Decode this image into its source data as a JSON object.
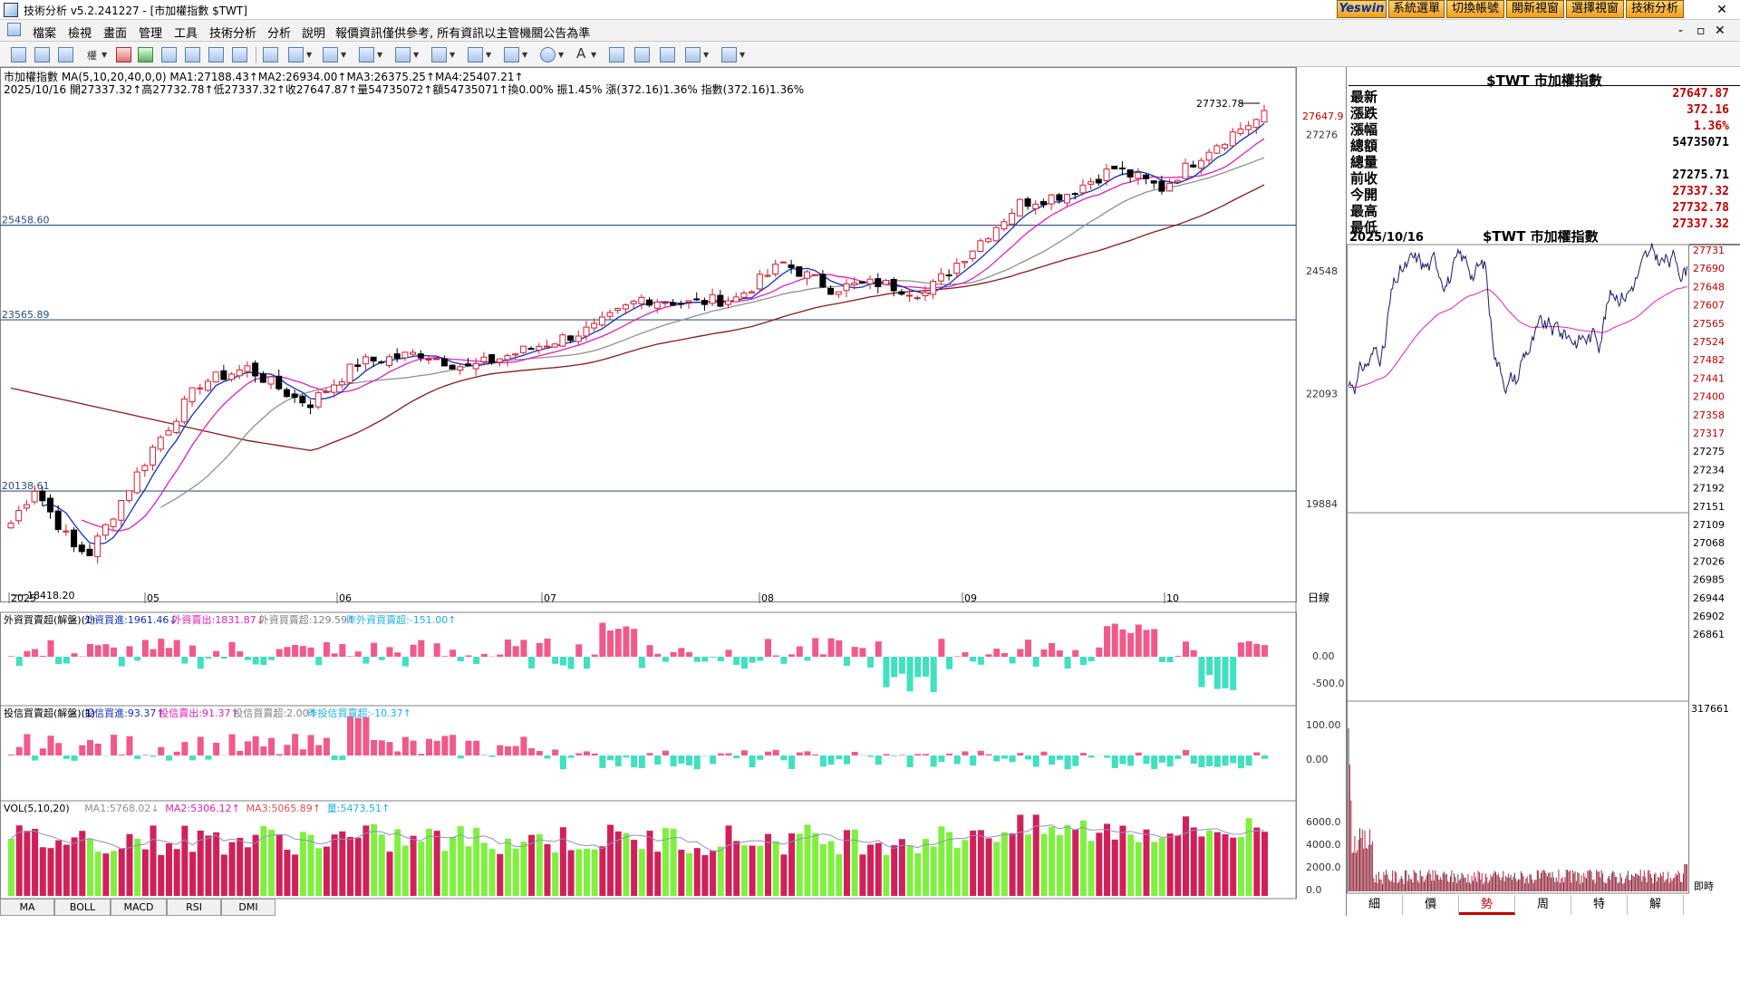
{
  "window": {
    "title": "技術分析 v5.2.241227 - [市加權指數 $TWT]",
    "top_buttons": [
      "Yeswin",
      "系統選單",
      "切換帳號",
      "開新視窗",
      "選擇視窗",
      "技術分析"
    ],
    "close_glyph": "✕",
    "ctrl_glyphs": [
      "-",
      "▫",
      "✕"
    ]
  },
  "menu": {
    "items": [
      "檔案",
      "檢視",
      "畫面",
      "管理",
      "工具",
      "技術分析",
      "分析",
      "說明"
    ],
    "notice": "報價資訊僅供參考, 所有資訊以主管機關公告為準"
  },
  "toolbar": {
    "font_label": "A"
  },
  "main_chart": {
    "header_line1": "市加權指數 MA(5,10,20,40,0,0) MA1:27188.43↑MA2:26934.00↑MA3:26375.25↑MA4:25407.21↑",
    "header_line2": "2025/10/16 開27337.32↑高27732.78↑低27337.32↑收27647.87↑量54735072↑額54735071↑換0.00% 振1.45% 漲(372.16)1.36% 指數(372.16)1.36%",
    "hlines": [
      "25458.60",
      "23565.89",
      "20138.61"
    ],
    "high_label": "27732.78",
    "low_label": "18418.20",
    "last_price": "27647.9",
    "price_ticks": [
      "27276",
      "24548",
      "22093",
      "19884"
    ],
    "months": [
      "2025",
      "05",
      "06",
      "07",
      "08",
      "09",
      "10"
    ],
    "axis_unit": "日線"
  },
  "foreign_panel": {
    "header_parts": [
      "外資買賣超(解盤)(1)",
      "外資買進:1961.46↓",
      "外資賣出:1831.87↓",
      "外資買賣超:129.59↑",
      "昨外資買賣超:-151.00↑"
    ],
    "ticks": [
      "0.00",
      "-500.0"
    ]
  },
  "trust_panel": {
    "header_parts": [
      "投信買賣超(解盤)(1)",
      "投信買進:93.37↑",
      "投信賣出:91.37↑",
      "投信買賣超:2.00↑",
      "昨投信買賣超:-10.37↑"
    ],
    "ticks": [
      "100.00",
      "0.00"
    ]
  },
  "volume_panel": {
    "header_parts": [
      "VOL(5,10,20)",
      "MA1:5768.02↓",
      "MA2:5306.12↑",
      "MA3:5065.89↑",
      "量:5473.51↑"
    ],
    "ticks": [
      "6000.0",
      "4000.0",
      "2000.0",
      "0.0"
    ]
  },
  "bottom_tabs": [
    "MA",
    "BOLL",
    "MACD",
    "RSI",
    "DMI"
  ],
  "quote": {
    "title": "$TWT 市加權指數",
    "rows": [
      {
        "label": "最新",
        "value": "27647.87",
        "color": "#c00000"
      },
      {
        "label": "漲跌",
        "value": "372.16",
        "color": "#c00000"
      },
      {
        "label": "漲幅",
        "value": "1.36%",
        "color": "#c00000"
      },
      {
        "label": "總額",
        "value": "54735071",
        "color": "#000000"
      },
      {
        "label": "總量",
        "value": "",
        "color": "#000000"
      },
      {
        "label": "前收",
        "value": "27275.71",
        "color": "#000000"
      },
      {
        "label": "今開",
        "value": "27337.32",
        "color": "#c00000"
      },
      {
        "label": "最高",
        "value": "27732.78",
        "color": "#c00000"
      },
      {
        "label": "最低",
        "value": "27337.32",
        "color": "#c00000"
      }
    ]
  },
  "intraday": {
    "date": "2025/10/16",
    "title": "$TWT 市加權指數",
    "price_ticks": [
      "27731",
      "27690",
      "27648",
      "27607",
      "27565",
      "27524",
      "27482",
      "27441",
      "27400",
      "27358",
      "27317",
      "27275",
      "27234",
      "27192",
      "27151",
      "27109",
      "27068",
      "27026",
      "26985",
      "26944",
      "26902",
      "26861"
    ],
    "vol_max": "317661",
    "time_label": "即時"
  },
  "right_tabs": [
    "細",
    "價",
    "勢",
    "周",
    "特",
    "解"
  ],
  "colors": {
    "up": "#d02030",
    "down": "#000000",
    "ma1": "#1030c0",
    "ma2": "#e020c0",
    "ma3": "#909090",
    "ma4": "#8b1a1a",
    "pink_bar": "#f05a8a",
    "cyan_bar": "#40e0c0",
    "vol_red": "#d0205a",
    "vol_green": "#80f040"
  }
}
